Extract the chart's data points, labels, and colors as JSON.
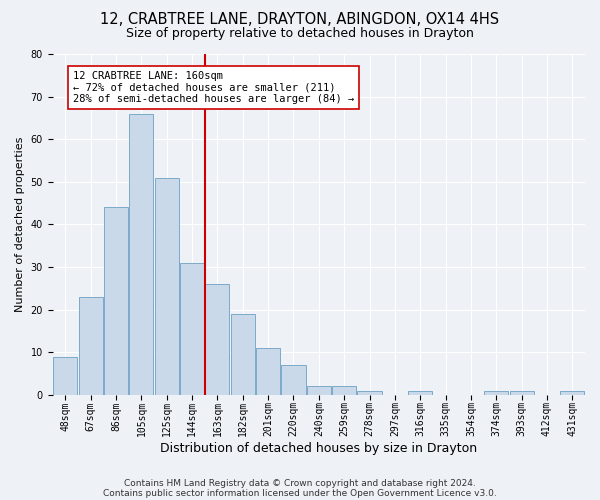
{
  "title1": "12, CRABTREE LANE, DRAYTON, ABINGDON, OX14 4HS",
  "title2": "Size of property relative to detached houses in Drayton",
  "xlabel": "Distribution of detached houses by size in Drayton",
  "ylabel": "Number of detached properties",
  "categories": [
    "48sqm",
    "67sqm",
    "86sqm",
    "105sqm",
    "125sqm",
    "144sqm",
    "163sqm",
    "182sqm",
    "201sqm",
    "220sqm",
    "240sqm",
    "259sqm",
    "278sqm",
    "297sqm",
    "316sqm",
    "335sqm",
    "354sqm",
    "374sqm",
    "393sqm",
    "412sqm",
    "431sqm"
  ],
  "values": [
    9,
    23,
    44,
    66,
    51,
    31,
    26,
    19,
    11,
    7,
    2,
    2,
    1,
    0,
    1,
    0,
    0,
    1,
    1,
    0,
    1
  ],
  "bar_color": "#c9d9ea",
  "bar_edge_color": "#7aaac8",
  "vline_x": 6,
  "vline_color": "#cc0000",
  "annotation_text": "12 CRABTREE LANE: 160sqm\n← 72% of detached houses are smaller (211)\n28% of semi-detached houses are larger (84) →",
  "annotation_box_color": "#ffffff",
  "annotation_box_edge": "#cc0000",
  "ylim": [
    0,
    80
  ],
  "yticks": [
    0,
    10,
    20,
    30,
    40,
    50,
    60,
    70,
    80
  ],
  "footnote1": "Contains HM Land Registry data © Crown copyright and database right 2024.",
  "footnote2": "Contains public sector information licensed under the Open Government Licence v3.0.",
  "bg_color": "#eef2f7",
  "plot_bg_color": "#eef2f7",
  "title1_fontsize": 10.5,
  "title2_fontsize": 9,
  "xlabel_fontsize": 9,
  "ylabel_fontsize": 8,
  "tick_fontsize": 7,
  "footnote_fontsize": 6.5,
  "annotation_fontsize": 7.5
}
